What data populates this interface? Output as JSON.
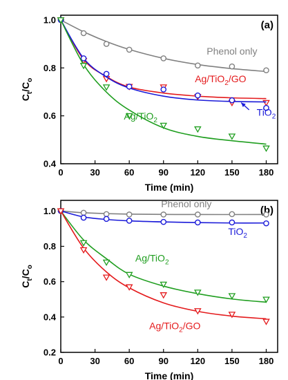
{
  "chart_data": [
    {
      "type": "scatter",
      "panel_label": "(a)",
      "xlabel": "Time (min)",
      "ylabel": "Ct/Co",
      "xlim": [
        0,
        190
      ],
      "ylim": [
        0.4,
        1.02
      ],
      "xticks": [
        0,
        30,
        60,
        90,
        120,
        150,
        180
      ],
      "yticks": [
        0.4,
        0.6,
        0.8,
        1.0
      ],
      "ytick_labels": [
        "0.4",
        "0.6",
        "0.8",
        "1.0"
      ],
      "grid": false,
      "series": [
        {
          "name": "Phenol only",
          "color": "#808080",
          "marker": "circle",
          "x": [
            0,
            20,
            40,
            60,
            90,
            120,
            150,
            180
          ],
          "y": [
            1.0,
            0.945,
            0.9,
            0.876,
            0.84,
            0.81,
            0.806,
            0.79
          ],
          "fit": [
            [
              0,
              1.0
            ],
            [
              20,
              0.951
            ],
            [
              40,
              0.91
            ],
            [
              60,
              0.877
            ],
            [
              90,
              0.84
            ],
            [
              120,
              0.814
            ],
            [
              150,
              0.797
            ],
            [
              180,
              0.785
            ]
          ],
          "label": {
            "text": "Phenol only",
            "x": 150,
            "y": 0.855,
            "anchor": "middle"
          }
        },
        {
          "name": "Ag/TiO2/GO",
          "color": "#e41a1c",
          "marker": "triangle",
          "x": [
            0,
            20,
            40,
            60,
            90,
            120,
            150,
            180
          ],
          "y": [
            1.0,
            0.83,
            0.755,
            0.722,
            0.72,
            0.68,
            0.655,
            0.655
          ],
          "fit": [
            [
              0,
              1.0
            ],
            [
              20,
              0.835
            ],
            [
              40,
              0.764
            ],
            [
              60,
              0.72
            ],
            [
              90,
              0.695
            ],
            [
              120,
              0.682
            ],
            [
              150,
              0.675
            ],
            [
              180,
              0.672
            ]
          ],
          "label": {
            "text": "Ag/TiO",
            "sub": "2",
            "rest": "/GO",
            "x": 140,
            "y": 0.74,
            "anchor": "middle"
          }
        },
        {
          "name": "TiO2",
          "color": "#1a1ad9",
          "marker": "circle",
          "x": [
            0,
            20,
            40,
            60,
            90,
            120,
            150,
            180
          ],
          "y": [
            1.0,
            0.84,
            0.775,
            0.722,
            0.71,
            0.685,
            0.665,
            0.633
          ],
          "fit": [
            [
              0,
              1.0
            ],
            [
              20,
              0.84
            ],
            [
              40,
              0.762
            ],
            [
              60,
              0.716
            ],
            [
              90,
              0.682
            ],
            [
              120,
              0.666
            ],
            [
              150,
              0.66
            ],
            [
              180,
              0.658
            ]
          ],
          "label": {
            "text": "TiO",
            "sub": "2",
            "x": 180,
            "y": 0.6,
            "anchor": "middle"
          },
          "arrow": {
            "from": [
              165,
              0.625
            ],
            "to": [
              158,
              0.655
            ]
          }
        },
        {
          "name": "Ag/TiO2",
          "color": "#1f9e1f",
          "marker": "triangle",
          "x": [
            0,
            20,
            40,
            60,
            90,
            120,
            150,
            180
          ],
          "y": [
            1.0,
            0.81,
            0.72,
            0.6,
            0.56,
            0.545,
            0.515,
            0.465
          ],
          "fit": [
            [
              0,
              1.0
            ],
            [
              20,
              0.814
            ],
            [
              40,
              0.699
            ],
            [
              60,
              0.624
            ],
            [
              90,
              0.55
            ],
            [
              120,
              0.514
            ],
            [
              150,
              0.496
            ],
            [
              180,
              0.482
            ]
          ],
          "label": {
            "text": "Ag/TiO",
            "sub": "2",
            "x": 70,
            "y": 0.585,
            "anchor": "middle"
          }
        }
      ]
    },
    {
      "type": "scatter",
      "panel_label": "(b)",
      "xlabel": "Time (min)",
      "ylabel": "Ct/Co",
      "xlim": [
        0,
        190
      ],
      "ylim": [
        0.2,
        1.06
      ],
      "xticks": [
        0,
        30,
        60,
        90,
        120,
        150,
        180
      ],
      "yticks": [
        0.2,
        0.4,
        0.6,
        0.8,
        1.0
      ],
      "ytick_labels": [
        "0.2",
        "0.4",
        "0.6",
        "0.8",
        "1.0"
      ],
      "grid": false,
      "series": [
        {
          "name": "Phenol only",
          "color": "#808080",
          "marker": "circle",
          "x": [
            0,
            20,
            40,
            60,
            90,
            120,
            150,
            180
          ],
          "y": [
            1.0,
            0.99,
            0.982,
            0.98,
            0.98,
            0.98,
            0.982,
            0.98
          ],
          "fit": [
            [
              0,
              1.0
            ],
            [
              20,
              0.99
            ],
            [
              60,
              0.982
            ],
            [
              120,
              0.98
            ],
            [
              180,
              0.98
            ]
          ],
          "label": {
            "text": "Phenol only",
            "x": 110,
            "y": 1.02,
            "anchor": "middle"
          }
        },
        {
          "name": "TiO2",
          "color": "#1a1ad9",
          "marker": "circle",
          "x": [
            0,
            20,
            40,
            60,
            90,
            120,
            150,
            180
          ],
          "y": [
            1.0,
            0.962,
            0.955,
            0.945,
            0.938,
            0.935,
            0.935,
            0.93
          ],
          "fit": [
            [
              0,
              1.0
            ],
            [
              20,
              0.966
            ],
            [
              40,
              0.952
            ],
            [
              60,
              0.944
            ],
            [
              90,
              0.938
            ],
            [
              120,
              0.934
            ],
            [
              150,
              0.932
            ],
            [
              180,
              0.932
            ]
          ],
          "label": {
            "text": "TiO",
            "sub": "2",
            "x": 155,
            "y": 0.865,
            "anchor": "middle"
          }
        },
        {
          "name": "Ag/TiO2",
          "color": "#1f9e1f",
          "marker": "triangle",
          "x": [
            0,
            20,
            40,
            60,
            90,
            120,
            150,
            180
          ],
          "y": [
            1.0,
            0.82,
            0.71,
            0.64,
            0.585,
            0.54,
            0.52,
            0.5
          ],
          "fit": [
            [
              0,
              1.0
            ],
            [
              20,
              0.836
            ],
            [
              40,
              0.73
            ],
            [
              60,
              0.642
            ],
            [
              90,
              0.575
            ],
            [
              120,
              0.532
            ],
            [
              150,
              0.502
            ],
            [
              180,
              0.484
            ]
          ],
          "label": {
            "text": "Ag/TiO",
            "sub": "2",
            "x": 80,
            "y": 0.715,
            "anchor": "middle"
          }
        },
        {
          "name": "Ag/TiO2/GO",
          "color": "#e41a1c",
          "marker": "triangle",
          "x": [
            0,
            20,
            40,
            60,
            90,
            120,
            150,
            180
          ],
          "y": [
            1.0,
            0.78,
            0.625,
            0.57,
            0.525,
            0.435,
            0.415,
            0.375
          ],
          "fit": [
            [
              0,
              1.0
            ],
            [
              20,
              0.79
            ],
            [
              40,
              0.655
            ],
            [
              60,
              0.565
            ],
            [
              90,
              0.48
            ],
            [
              120,
              0.432
            ],
            [
              150,
              0.405
            ],
            [
              180,
              0.39
            ]
          ],
          "label": {
            "text": "Ag/TiO",
            "sub": "2",
            "rest": "/GO",
            "x": 100,
            "y": 0.33,
            "anchor": "middle"
          }
        }
      ]
    }
  ]
}
